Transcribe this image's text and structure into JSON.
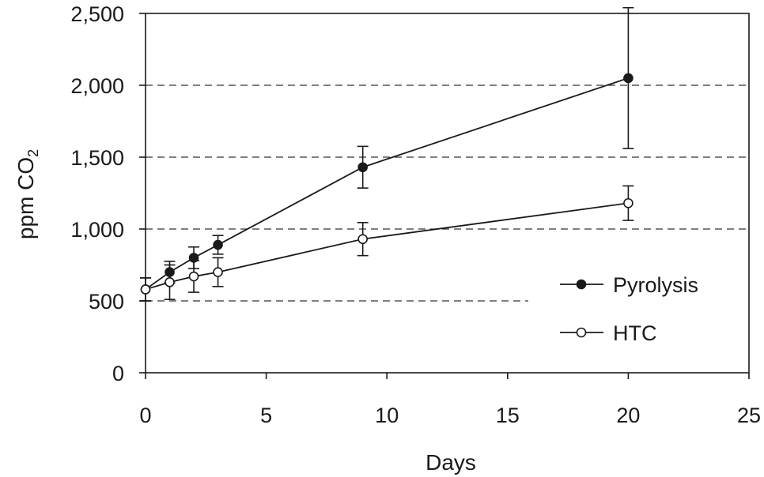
{
  "chart_data": {
    "type": "line",
    "xlabel": "Days",
    "ylabel": "ppm CO",
    "ylabel_subscript": "2",
    "xlim": [
      0,
      25
    ],
    "ylim": [
      0,
      2500
    ],
    "x_ticks": [
      0,
      5,
      10,
      15,
      20,
      25
    ],
    "x_tick_labels": [
      "0",
      "5",
      "10",
      "15",
      "20",
      "25"
    ],
    "y_ticks": [
      0,
      500,
      1000,
      1500,
      2000,
      2500
    ],
    "y_tick_labels": [
      "0",
      "500",
      "1,000",
      "1,500",
      "2,000",
      "2,500"
    ],
    "grid": "horizontal-dashed",
    "legend_position": "bottom-right",
    "series": [
      {
        "name": "Pyrolysis",
        "marker": "filled-circle",
        "color": "#1a1a1a",
        "points": [
          {
            "x": 0,
            "y": 580,
            "err": 80
          },
          {
            "x": 1,
            "y": 700,
            "err": 75
          },
          {
            "x": 2,
            "y": 800,
            "err": 75
          },
          {
            "x": 3,
            "y": 890,
            "err": 65
          },
          {
            "x": 9,
            "y": 1430,
            "err": 145
          },
          {
            "x": 20,
            "y": 2050,
            "err": 490
          }
        ]
      },
      {
        "name": "HTC",
        "marker": "open-circle",
        "color": "#1a1a1a",
        "points": [
          {
            "x": 0,
            "y": 580,
            "err": 80
          },
          {
            "x": 1,
            "y": 630,
            "err": 120
          },
          {
            "x": 2,
            "y": 670,
            "err": 110
          },
          {
            "x": 3,
            "y": 700,
            "err": 100
          },
          {
            "x": 9,
            "y": 930,
            "err": 115
          },
          {
            "x": 20,
            "y": 1180,
            "err": 120
          }
        ]
      }
    ]
  }
}
